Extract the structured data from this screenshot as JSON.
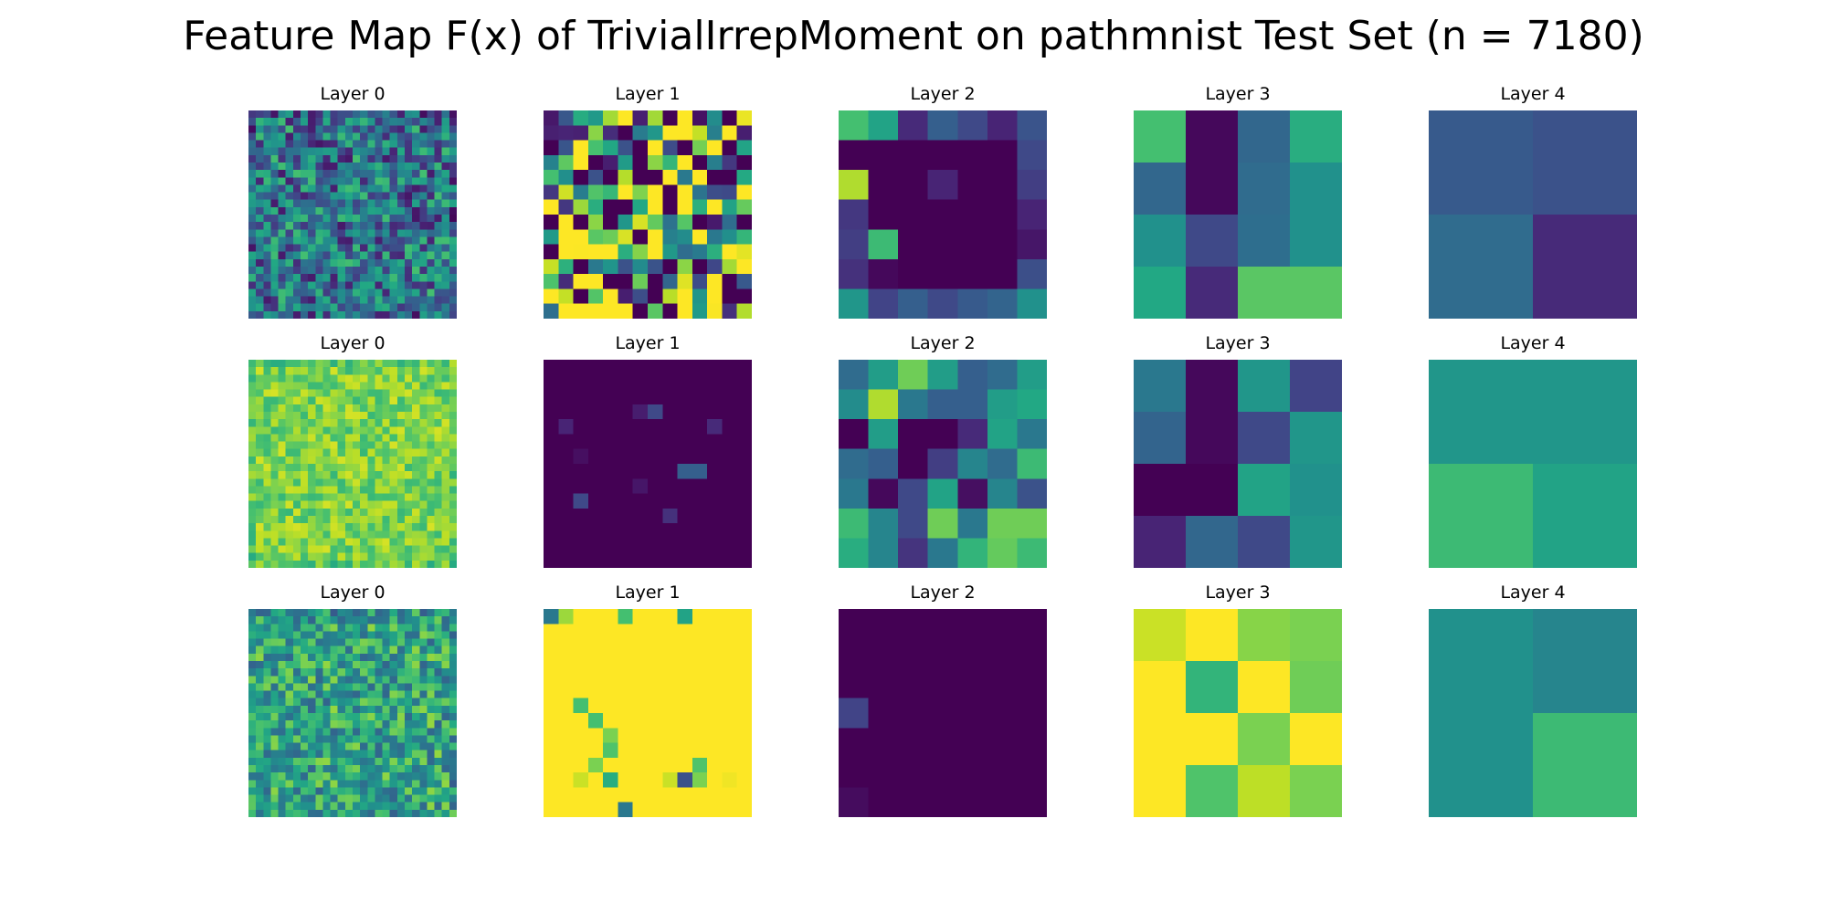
{
  "chart_data": {
    "type": "heatmap",
    "title": "Feature Map F(x) of TrivialIrrepMoment on pathmnist Test Set (n = 7180)",
    "colormap": "viridis",
    "value_range": [
      0,
      1
    ],
    "rows": [
      [
        {
          "title": "Layer 0",
          "size": 28,
          "base": 0.38,
          "noise": 0.32,
          "seed": 11
        },
        {
          "title": "Layer 1",
          "size": 14,
          "base": 0.55,
          "noise": 0.85,
          "seed": 23
        },
        {
          "title": "Layer 2",
          "size": 7,
          "values": [
            [
              0.7,
              0.58,
              0.12,
              0.3,
              0.22,
              0.1,
              0.26
            ],
            [
              0.0,
              0.0,
              0.0,
              0.0,
              0.0,
              0.0,
              0.22
            ],
            [
              0.88,
              0.0,
              0.0,
              0.1,
              0.0,
              0.0,
              0.18
            ],
            [
              0.16,
              0.0,
              0.0,
              0.0,
              0.0,
              0.0,
              0.1
            ],
            [
              0.18,
              0.68,
              0.0,
              0.0,
              0.0,
              0.0,
              0.06
            ],
            [
              0.14,
              0.02,
              0.0,
              0.0,
              0.0,
              0.0,
              0.24
            ],
            [
              0.52,
              0.2,
              0.3,
              0.22,
              0.28,
              0.32,
              0.5
            ]
          ]
        },
        {
          "title": "Layer 3",
          "size": 4,
          "values": [
            [
              0.7,
              0.02,
              0.33,
              0.62
            ],
            [
              0.33,
              0.02,
              0.35,
              0.5
            ],
            [
              0.5,
              0.22,
              0.36,
              0.5
            ],
            [
              0.6,
              0.12,
              0.74,
              0.74
            ]
          ]
        },
        {
          "title": "Layer 4",
          "size": 2,
          "values": [
            [
              0.28,
              0.25
            ],
            [
              0.35,
              0.12
            ]
          ]
        }
      ],
      [
        {
          "title": "Layer 0",
          "size": 28,
          "base": 0.8,
          "noise": 0.14,
          "seed": 37
        },
        {
          "title": "Layer 1",
          "size": 14,
          "values": [
            [
              0,
              0,
              0,
              0,
              0,
              0,
              0,
              0,
              0,
              0,
              0,
              0,
              0,
              0
            ],
            [
              0,
              0,
              0,
              0,
              0,
              0,
              0,
              0,
              0,
              0,
              0,
              0,
              0,
              0
            ],
            [
              0,
              0,
              0,
              0,
              0,
              0,
              0,
              0,
              0,
              0,
              0,
              0,
              0,
              0
            ],
            [
              0,
              0,
              0,
              0,
              0,
              0,
              0,
              0.12,
              0,
              0,
              0,
              0,
              0,
              0
            ],
            [
              0,
              0,
              0,
              0,
              0,
              0,
              0,
              0,
              0,
              0,
              0,
              0,
              0,
              0
            ],
            [
              0,
              0,
              0,
              0,
              0,
              0,
              0,
              0,
              0,
              0,
              0,
              0,
              0,
              0
            ],
            [
              0,
              0,
              0,
              0,
              0,
              0,
              0,
              0,
              0,
              0,
              0,
              0,
              0,
              0
            ],
            [
              0,
              0,
              0,
              0,
              0,
              0,
              0,
              0,
              0,
              0,
              0,
              0,
              0,
              0
            ],
            [
              0,
              0,
              0,
              0,
              0,
              0,
              0,
              0,
              0,
              0,
              0,
              0,
              0,
              0
            ],
            [
              0,
              0,
              0,
              0,
              0,
              0,
              0,
              0,
              0,
              0,
              0,
              0,
              0,
              0
            ],
            [
              0,
              0,
              0,
              0,
              0,
              0,
              0,
              0,
              0,
              0,
              0,
              0,
              0,
              0
            ],
            [
              0,
              0,
              0,
              0,
              0,
              0,
              0,
              0,
              0,
              0,
              0,
              0,
              0,
              0
            ],
            [
              0,
              0,
              0,
              0,
              0,
              0,
              0,
              0,
              0,
              0,
              0,
              0,
              0,
              0
            ],
            [
              0,
              0,
              0,
              0,
              0,
              0,
              0,
              0,
              0,
              0,
              0,
              0,
              0,
              0
            ]
          ],
          "spots": [
            [
              3,
              7,
              0.22
            ],
            [
              3,
              6,
              0.08
            ],
            [
              4,
              1,
              0.1
            ],
            [
              4,
              11,
              0.12
            ],
            [
              6,
              2,
              0.04
            ],
            [
              7,
              9,
              0.3
            ],
            [
              7,
              10,
              0.3
            ],
            [
              8,
              6,
              0.06
            ],
            [
              9,
              2,
              0.22
            ],
            [
              10,
              8,
              0.14
            ]
          ]
        },
        {
          "title": "Layer 2",
          "size": 7,
          "values": [
            [
              0.35,
              0.55,
              0.78,
              0.55,
              0.3,
              0.35,
              0.55
            ],
            [
              0.48,
              0.88,
              0.4,
              0.3,
              0.3,
              0.55,
              0.6
            ],
            [
              0.0,
              0.55,
              0.0,
              0.0,
              0.12,
              0.58,
              0.4
            ],
            [
              0.35,
              0.3,
              0.0,
              0.18,
              0.45,
              0.35,
              0.68
            ],
            [
              0.4,
              0.02,
              0.22,
              0.58,
              0.04,
              0.45,
              0.25
            ],
            [
              0.68,
              0.45,
              0.22,
              0.78,
              0.4,
              0.78,
              0.78
            ],
            [
              0.62,
              0.45,
              0.15,
              0.4,
              0.65,
              0.76,
              0.68
            ]
          ]
        },
        {
          "title": "Layer 3",
          "size": 4,
          "values": [
            [
              0.4,
              0.02,
              0.52,
              0.2
            ],
            [
              0.32,
              0.02,
              0.22,
              0.52
            ],
            [
              0.0,
              0.0,
              0.58,
              0.5
            ],
            [
              0.1,
              0.33,
              0.22,
              0.52
            ]
          ]
        },
        {
          "title": "Layer 4",
          "size": 2,
          "values": [
            [
              0.52,
              0.52
            ],
            [
              0.68,
              0.58
            ]
          ]
        }
      ],
      [
        {
          "title": "Layer 0",
          "size": 28,
          "base": 0.58,
          "noise": 0.26,
          "seed": 53
        },
        {
          "title": "Layer 1",
          "size": 14,
          "values": [
            [
              0.4,
              0.85,
              1,
              1,
              1,
              0.7,
              1,
              1,
              1,
              0.58,
              1,
              1,
              1,
              1
            ],
            [
              1,
              1,
              1,
              1,
              1,
              1,
              1,
              1,
              1,
              1,
              1,
              1,
              1,
              1
            ],
            [
              1,
              1,
              1,
              1,
              1,
              1,
              1,
              1,
              1,
              1,
              1,
              1,
              1,
              1
            ],
            [
              1,
              1,
              1,
              1,
              1,
              1,
              1,
              1,
              1,
              1,
              1,
              1,
              1,
              1
            ],
            [
              1,
              1,
              1,
              1,
              1,
              1,
              1,
              1,
              1,
              1,
              1,
              1,
              1,
              1
            ],
            [
              1,
              1,
              1,
              1,
              1,
              1,
              1,
              1,
              1,
              1,
              1,
              1,
              1,
              1
            ],
            [
              1,
              1,
              0.7,
              1,
              1,
              1,
              1,
              1,
              1,
              1,
              1,
              1,
              1,
              1
            ],
            [
              1,
              1,
              1,
              0.7,
              1,
              1,
              1,
              1,
              1,
              1,
              1,
              1,
              1,
              1
            ],
            [
              1,
              1,
              1,
              1,
              0.8,
              1,
              1,
              1,
              1,
              1,
              1,
              1,
              1,
              1
            ],
            [
              1,
              1,
              1,
              1,
              0.72,
              1,
              1,
              1,
              1,
              1,
              1,
              1,
              1,
              1
            ],
            [
              1,
              1,
              1,
              0.8,
              1,
              1,
              1,
              1,
              1,
              1,
              0.72,
              1,
              1,
              1
            ],
            [
              1,
              1,
              0.92,
              1,
              0.62,
              1,
              1,
              1,
              0.92,
              0.25,
              0.8,
              1,
              0.98,
              1
            ],
            [
              1,
              1,
              1,
              1,
              1,
              1,
              1,
              1,
              1,
              1,
              1,
              1,
              1,
              1
            ],
            [
              1,
              1,
              1,
              1,
              1,
              1,
              1,
              1,
              1,
              1,
              1,
              1,
              1,
              1
            ]
          ],
          "spots": [
            [
              13,
              5,
              0.4
            ]
          ]
        },
        {
          "title": "Layer 2",
          "size": 7,
          "values": [
            [
              0,
              0,
              0,
              0,
              0,
              0,
              0
            ],
            [
              0,
              0,
              0,
              0,
              0,
              0,
              0
            ],
            [
              0,
              0,
              0,
              0,
              0,
              0,
              0
            ],
            [
              0.2,
              0,
              0,
              0,
              0,
              0,
              0
            ],
            [
              0,
              0,
              0,
              0,
              0,
              0,
              0
            ],
            [
              0,
              0,
              0,
              0,
              0,
              0,
              0
            ],
            [
              0.03,
              0,
              0,
              0,
              0,
              0,
              0
            ]
          ]
        },
        {
          "title": "Layer 3",
          "size": 4,
          "values": [
            [
              0.92,
              1.0,
              0.82,
              0.8
            ],
            [
              1.0,
              0.65,
              1.0,
              0.78
            ],
            [
              1.0,
              1.0,
              0.8,
              1.0
            ],
            [
              1.0,
              0.72,
              0.9,
              0.8
            ]
          ]
        },
        {
          "title": "Layer 4",
          "size": 2,
          "values": [
            [
              0.5,
              0.45
            ],
            [
              0.5,
              0.68
            ]
          ]
        }
      ]
    ]
  }
}
